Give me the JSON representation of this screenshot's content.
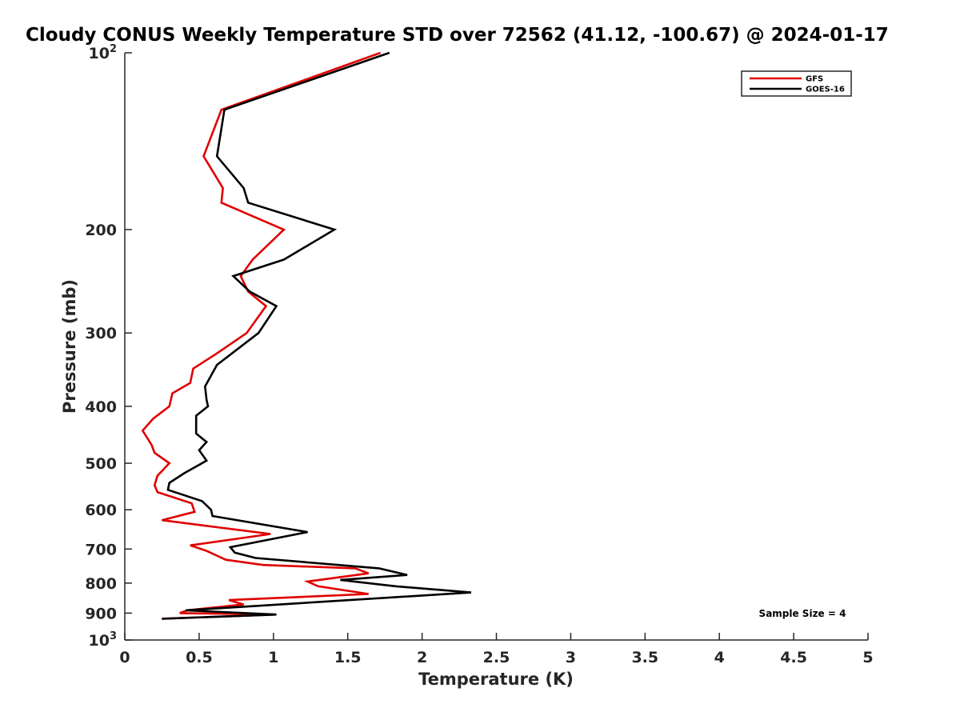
{
  "chart_data": {
    "type": "line",
    "title": "Cloudy CONUS Weekly Temperature STD over 72562 (41.12, -100.67) @ 2024-01-17",
    "xlabel": "Temperature (K)",
    "ylabel": "Pressure (mb)",
    "xlim": [
      0,
      5
    ],
    "ylim": [
      100,
      1000
    ],
    "y_scale": "log",
    "y_reversed": true,
    "x_ticks": [
      "0",
      "0.5",
      "1",
      "1.5",
      "2",
      "2.5",
      "3",
      "3.5",
      "4",
      "4.5",
      "5"
    ],
    "y_ticks": [
      {
        "value": 100,
        "base": "10",
        "exp": "2"
      },
      {
        "value": 200,
        "label": "200"
      },
      {
        "value": 300,
        "label": "300"
      },
      {
        "value": 400,
        "label": "400"
      },
      {
        "value": 500,
        "label": "500"
      },
      {
        "value": 600,
        "label": "600"
      },
      {
        "value": 700,
        "label": "700"
      },
      {
        "value": 800,
        "label": "800"
      },
      {
        "value": 900,
        "label": "900"
      },
      {
        "value": 1000,
        "base": "10",
        "exp": "3"
      }
    ],
    "grid": false,
    "legend_position": "top-right",
    "annotation": "Sample Size = 4",
    "series": [
      {
        "name": "GFS",
        "color": "#e00000",
        "points": [
          [
            1.72,
            100
          ],
          [
            0.65,
            125
          ],
          [
            0.53,
            150
          ],
          [
            0.66,
            170
          ],
          [
            0.65,
            180
          ],
          [
            1.07,
            200
          ],
          [
            0.86,
            225
          ],
          [
            0.78,
            240
          ],
          [
            0.83,
            255
          ],
          [
            0.95,
            270
          ],
          [
            0.82,
            300
          ],
          [
            0.62,
            325
          ],
          [
            0.46,
            345
          ],
          [
            0.44,
            365
          ],
          [
            0.32,
            380
          ],
          [
            0.3,
            400
          ],
          [
            0.19,
            420
          ],
          [
            0.12,
            440
          ],
          [
            0.18,
            465
          ],
          [
            0.2,
            480
          ],
          [
            0.3,
            500
          ],
          [
            0.22,
            525
          ],
          [
            0.2,
            545
          ],
          [
            0.22,
            560
          ],
          [
            0.45,
            585
          ],
          [
            0.47,
            605
          ],
          [
            0.25,
            625
          ],
          [
            0.98,
            660
          ],
          [
            0.44,
            690
          ],
          [
            0.55,
            705
          ],
          [
            0.68,
            730
          ],
          [
            0.93,
            745
          ],
          [
            1.55,
            755
          ],
          [
            1.64,
            770
          ],
          [
            1.23,
            795
          ],
          [
            1.3,
            810
          ],
          [
            1.64,
            835
          ],
          [
            0.7,
            855
          ],
          [
            0.8,
            870
          ],
          [
            0.42,
            890
          ],
          [
            0.37,
            900
          ],
          [
            1.02,
            905
          ],
          [
            0.25,
            920
          ]
        ]
      },
      {
        "name": "GOES-16",
        "color": "#000000",
        "points": [
          [
            1.78,
            100
          ],
          [
            0.67,
            125
          ],
          [
            0.62,
            150
          ],
          [
            0.8,
            170
          ],
          [
            0.83,
            180
          ],
          [
            1.41,
            200
          ],
          [
            1.07,
            225
          ],
          [
            0.73,
            240
          ],
          [
            0.84,
            255
          ],
          [
            1.02,
            270
          ],
          [
            0.9,
            300
          ],
          [
            0.62,
            340
          ],
          [
            0.54,
            370
          ],
          [
            0.55,
            390
          ],
          [
            0.56,
            400
          ],
          [
            0.48,
            415
          ],
          [
            0.48,
            445
          ],
          [
            0.55,
            460
          ],
          [
            0.5,
            475
          ],
          [
            0.55,
            495
          ],
          [
            0.4,
            520
          ],
          [
            0.3,
            540
          ],
          [
            0.29,
            555
          ],
          [
            0.52,
            580
          ],
          [
            0.58,
            600
          ],
          [
            0.59,
            615
          ],
          [
            1.23,
            655
          ],
          [
            0.71,
            695
          ],
          [
            0.74,
            710
          ],
          [
            0.88,
            725
          ],
          [
            1.71,
            755
          ],
          [
            1.9,
            775
          ],
          [
            1.45,
            790
          ],
          [
            1.82,
            810
          ],
          [
            2.33,
            830
          ],
          [
            0.41,
            890
          ],
          [
            1.02,
            905
          ],
          [
            0.25,
            920
          ]
        ]
      }
    ]
  }
}
